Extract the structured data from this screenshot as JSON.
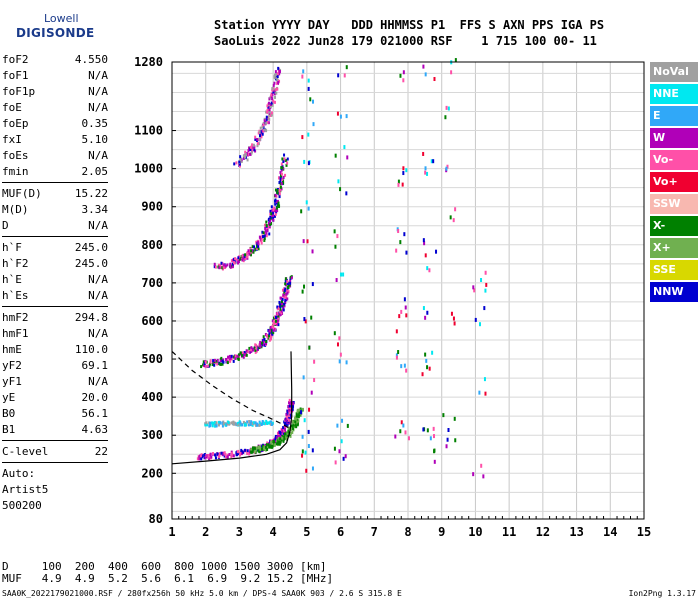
{
  "logo": {
    "line1": "Lowell",
    "line2": "DIGISONDE"
  },
  "header": {
    "row1": "Station YYYY DAY   DDD HHMMSS P1  FFS S AXN PPS IGA PS",
    "row2": "SaoLuis 2022 Jun28 179 021000 RSF    1 715 100 00- 11"
  },
  "params_group1": [
    {
      "k": "foF2",
      "v": "4.550"
    },
    {
      "k": "foF1",
      "v": "N/A"
    },
    {
      "k": "foF1p",
      "v": "N/A"
    },
    {
      "k": "foE",
      "v": "N/A"
    },
    {
      "k": "foEp",
      "v": "0.35"
    },
    {
      "k": "fxI",
      "v": "5.10"
    },
    {
      "k": "foEs",
      "v": "N/A"
    },
    {
      "k": "fmin",
      "v": "2.05"
    }
  ],
  "params_group2": [
    {
      "k": "MUF(D)",
      "v": "15.22"
    },
    {
      "k": "M(D)",
      "v": "3.34"
    },
    {
      "k": "D",
      "v": "N/A"
    }
  ],
  "params_group3": [
    {
      "k": "h`F",
      "v": "245.0"
    },
    {
      "k": "h`F2",
      "v": "245.0"
    },
    {
      "k": "h`E",
      "v": "N/A"
    },
    {
      "k": "h`Es",
      "v": "N/A"
    }
  ],
  "params_group4": [
    {
      "k": "hmF2",
      "v": "294.8"
    },
    {
      "k": "hmF1",
      "v": "N/A"
    },
    {
      "k": "hmE",
      "v": "110.0"
    },
    {
      "k": "yF2",
      "v": "69.1"
    },
    {
      "k": "yF1",
      "v": "N/A"
    },
    {
      "k": "yE",
      "v": "20.0"
    },
    {
      "k": "B0",
      "v": "56.1"
    },
    {
      "k": "B1",
      "v": "4.63"
    }
  ],
  "params_group5": [
    {
      "k": "C-level",
      "v": "22"
    }
  ],
  "auto_lines": [
    "Auto:",
    "Artist5",
    "500200"
  ],
  "legend": [
    {
      "label": "NoVal",
      "bg": "#a0a0a0",
      "fg": "#ffffff"
    },
    {
      "label": "NNE",
      "bg": "#00e8f0",
      "fg": "#ffffff"
    },
    {
      "label": "E",
      "bg": "#30a8f8",
      "fg": "#ffffff"
    },
    {
      "label": "W",
      "bg": "#b000b8",
      "fg": "#ffffff"
    },
    {
      "label": "Vo-",
      "bg": "#ff50a8",
      "fg": "#ffffff"
    },
    {
      "label": "Vo+",
      "bg": "#f00030",
      "fg": "#ffffff"
    },
    {
      "label": "SSW",
      "bg": "#f8b8b0",
      "fg": "#ffffff"
    },
    {
      "label": "X-",
      "bg": "#008000",
      "fg": "#ffffff"
    },
    {
      "label": "X+",
      "bg": "#70b050",
      "fg": "#ffffff"
    },
    {
      "label": "SSE",
      "bg": "#d8d800",
      "fg": "#ffffff"
    },
    {
      "label": "NNW",
      "bg": "#0000d0",
      "fg": "#ffffff"
    }
  ],
  "footer": {
    "dist_row": "D     100  200  400  600  800 1000 1500 3000 [km]",
    "muf_row": "MUF   4.9  4.9  5.2  5.6  6.1  6.9  9.2 15.2 [MHz]",
    "status_left": "SAA0K_2022179021000.RSF / 280fx256h 50 kHz 5.0 km / DPS-4 SAA0K 903 / 2.6 S 315.8 E",
    "status_right": "Ion2Png 1.3.17"
  },
  "chart_data": {
    "type": "scatter",
    "x_ticks": [
      1,
      2,
      3,
      4,
      5,
      6,
      7,
      8,
      9,
      10,
      11,
      12,
      13,
      14,
      15
    ],
    "y_ticks": [
      80,
      200,
      300,
      400,
      500,
      600,
      700,
      800,
      900,
      1000,
      1100,
      1280
    ],
    "xlim": [
      1,
      15
    ],
    "ylim": [
      80,
      1280
    ],
    "grid": true,
    "trace_O": {
      "name": "O trace",
      "x": [
        1.8,
        2.0,
        2.5,
        3.0,
        3.4,
        3.7,
        3.9,
        4.05,
        4.15,
        4.25,
        4.35,
        4.42,
        4.48,
        4.52
      ],
      "y": [
        247,
        248,
        251,
        257,
        264,
        272,
        280,
        290,
        300,
        312,
        330,
        350,
        372,
        395
      ]
    },
    "trace_X": {
      "name": "X trace",
      "x": [
        3.3,
        3.6,
        3.9,
        4.1,
        4.3,
        4.45,
        4.6,
        4.7,
        4.8
      ],
      "y": [
        263,
        268,
        276,
        285,
        296,
        310,
        330,
        350,
        372
      ]
    },
    "multi2": {
      "name": "2F trace",
      "x": [
        1.9,
        2.3,
        2.7,
        3.1,
        3.4,
        3.65,
        3.85,
        4.0,
        4.12,
        4.2,
        4.3,
        4.38,
        4.45
      ],
      "y": [
        490,
        494,
        502,
        514,
        528,
        545,
        565,
        590,
        615,
        640,
        665,
        690,
        720
      ]
    },
    "multi3": {
      "name": "3F trace",
      "x": [
        2.3,
        2.7,
        3.0,
        3.3,
        3.55,
        3.75,
        3.9,
        4.05,
        4.15,
        4.25,
        4.35
      ],
      "y": [
        745,
        752,
        765,
        785,
        808,
        835,
        870,
        905,
        945,
        985,
        1040
      ]
    },
    "multi4": {
      "name": "4F trace",
      "x": [
        2.9,
        3.2,
        3.5,
        3.7,
        3.85,
        3.95,
        4.05,
        4.12
      ],
      "y": [
        1015,
        1040,
        1075,
        1110,
        1150,
        1190,
        1230,
        1270
      ]
    },
    "es_band": {
      "name": "Es band",
      "x": [
        2.0,
        2.4,
        2.8,
        3.2,
        3.6,
        4.0
      ],
      "y": [
        332,
        333,
        334,
        335,
        335,
        336
      ]
    },
    "profile": {
      "name": "Profile",
      "x": [
        1.0,
        2.0,
        3.0,
        3.8,
        4.2,
        4.4,
        4.5,
        4.55,
        4.55,
        4.53
      ],
      "y": [
        225,
        232,
        240,
        250,
        262,
        280,
        310,
        350,
        420,
        520
      ]
    },
    "profile_dashed": {
      "name": "Profile extrapolation",
      "x": [
        1.0,
        1.6,
        2.2,
        2.8,
        3.4,
        3.9,
        4.25,
        4.45
      ],
      "y": [
        520,
        470,
        430,
        395,
        365,
        345,
        330,
        320
      ]
    },
    "scatter_cols": [
      {
        "x": 5.0,
        "y": [
          230,
          260,
          300,
          360,
          440,
          520,
          600,
          700,
          800,
          900,
          1000,
          1100,
          1200,
          1260
        ]
      },
      {
        "x": 6.0,
        "y": [
          240,
          280,
          320,
          500,
          560,
          720,
          820,
          950,
          1050,
          1150,
          1250
        ]
      },
      {
        "x": 7.8,
        "y": [
          300,
          320,
          480,
          520,
          600,
          640,
          800,
          840,
          960,
          1000,
          1260
        ]
      },
      {
        "x": 8.6,
        "y": [
          250,
          300,
          340,
          480,
          520,
          620,
          760,
          800,
          1000,
          1040,
          1250
        ]
      },
      {
        "x": 9.2,
        "y": [
          290,
          340,
          620,
          880,
          1000,
          1150,
          1270
        ]
      },
      {
        "x": 10.1,
        "y": [
          210,
          430,
          620,
          680,
          720
        ]
      }
    ]
  }
}
